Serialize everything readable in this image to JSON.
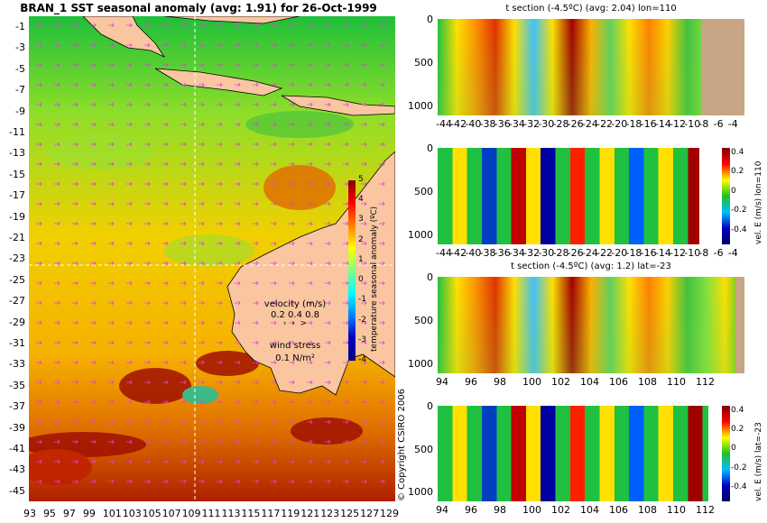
{
  "map_title": "BRAN_1  SST seasonal anomaly  (avg: 1.91) for 26-Oct-1999",
  "copyright": "© Copyright CSIRO 2006",
  "colors": {
    "land": "#f9c6a0",
    "bottom": "#c8a584",
    "arrow": "#e040e0"
  },
  "map_colorbar": {
    "label": "temperature seasonal anomaly (ºC)",
    "ticks": [
      "5",
      "4",
      "3",
      "2",
      "1",
      "0",
      "-1",
      "-2",
      "-3",
      "-4"
    ]
  },
  "legend": {
    "velocity_label": "velocity (m/s)",
    "velocity_scale": "0.2 0.4 0.8",
    "wind_label": "wind stress",
    "wind_scale": "0.1 N/m²"
  },
  "chart_data": [
    {
      "type": "heatmap",
      "name": "map",
      "xlabels": [
        "93",
        "95",
        "97",
        "99",
        "101",
        "103",
        "105",
        "107",
        "109",
        "111",
        "113",
        "115",
        "117",
        "119",
        "121",
        "123",
        "125",
        "127",
        "129"
      ],
      "ylabels": [
        "-1",
        "-3",
        "-5",
        "-7",
        "-9",
        "-11",
        "-13",
        "-15",
        "-17",
        "-19",
        "-21",
        "-23",
        "-25",
        "-27",
        "-29",
        "-31",
        "-33",
        "-35",
        "-37",
        "-39",
        "-41",
        "-43",
        "-45"
      ],
      "xlim": [
        93,
        130
      ],
      "ylim": [
        -45,
        1
      ],
      "crosshair": {
        "lon": 110,
        "lat": -23
      }
    },
    {
      "type": "heatmap",
      "name": "t-section-lon110",
      "title": "t section (-4.5ºC) (avg: 2.04) lon=110",
      "xlabels": [
        "-44",
        "-42",
        "-40",
        "-38",
        "-36",
        "-34",
        "-32",
        "-30",
        "-28",
        "-26",
        "-24",
        "-22",
        "-20",
        "-18",
        "-16",
        "-14",
        "-12",
        "-10",
        "-8",
        "-6",
        "-4"
      ],
      "ylabels": [
        "0",
        "500",
        "1000"
      ]
    },
    {
      "type": "heatmap",
      "name": "vel-section-lon110",
      "title": "",
      "xlabels": [
        "-44",
        "-42",
        "-40",
        "-38",
        "-36",
        "-34",
        "-32",
        "-30",
        "-28",
        "-26",
        "-24",
        "-22",
        "-20",
        "-18",
        "-16",
        "-14",
        "-12",
        "-10",
        "-8",
        "-6",
        "-4"
      ],
      "ylabels": [
        "0",
        "500",
        "1000"
      ],
      "colorbar_label": "vel. E (m/s) lon=110",
      "colorbar_ticks": [
        "0.4",
        "0.2",
        "0",
        "-0.2",
        "-0.4"
      ]
    },
    {
      "type": "heatmap",
      "name": "t-section-lat23",
      "title": "t section (-4.5ºC) (avg: 1.2) lat=-23",
      "xlabels": [
        "94",
        "96",
        "98",
        "100",
        "102",
        "104",
        "106",
        "108",
        "110",
        "112"
      ],
      "ylabels": [
        "0",
        "500",
        "1000"
      ]
    },
    {
      "type": "heatmap",
      "name": "vel-section-lat23",
      "title": "",
      "xlabels": [
        "94",
        "96",
        "98",
        "100",
        "102",
        "104",
        "106",
        "108",
        "110",
        "112"
      ],
      "ylabels": [
        "0",
        "500",
        "1000"
      ],
      "colorbar_label": "vel. E (m/s) lat=-23",
      "colorbar_ticks": [
        "0.4",
        "0.2",
        "0",
        "-0.2",
        "-0.4"
      ]
    }
  ]
}
